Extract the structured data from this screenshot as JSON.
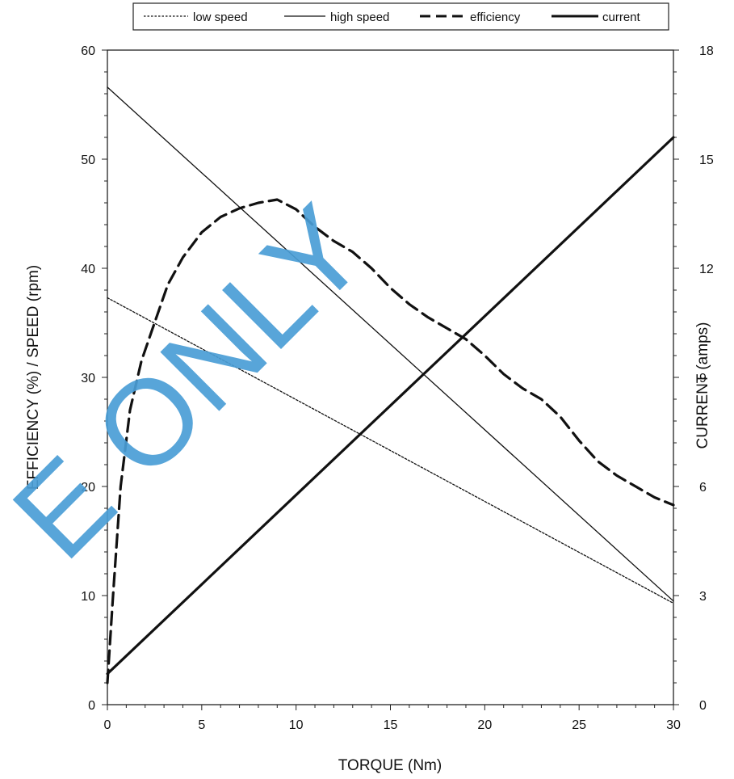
{
  "chart_data": {
    "type": "line",
    "title": "",
    "xlabel": "TORQUE (Nm)",
    "ylabel_left": "EFFICIENCY (%) / SPEED (rpm)",
    "ylabel_right": "CURRENT (amps)",
    "xlim": [
      0,
      30
    ],
    "ylim_left": [
      0,
      60
    ],
    "ylim_right": [
      0,
      18
    ],
    "x_ticks": [
      0,
      5,
      10,
      15,
      20,
      25,
      30
    ],
    "y_ticks_left": [
      0,
      10,
      20,
      30,
      40,
      50,
      60
    ],
    "y_ticks_right": [
      0,
      3,
      6,
      9,
      12,
      15,
      18
    ],
    "grid": false,
    "legend_position": "top-center",
    "series": [
      {
        "name": "low speed",
        "axis": "left",
        "style": "dotted-thin",
        "x": [
          0,
          30
        ],
        "y": [
          37.3,
          9.3
        ]
      },
      {
        "name": "high speed",
        "axis": "left",
        "style": "solid-thin",
        "x": [
          0,
          30
        ],
        "y": [
          56.6,
          9.5
        ]
      },
      {
        "name": "efficiency",
        "axis": "left",
        "style": "dashed-thick",
        "x": [
          0,
          0.3,
          0.7,
          1.2,
          1.8,
          2.5,
          3.2,
          4,
          5,
          6,
          7,
          8,
          9,
          10,
          11,
          12,
          13,
          14,
          15,
          16,
          17,
          18,
          19,
          20,
          21,
          22,
          23,
          24,
          25,
          26,
          27,
          28,
          29,
          30
        ],
        "y": [
          2,
          10,
          20,
          27,
          31.5,
          35,
          38.5,
          41,
          43.3,
          44.7,
          45.5,
          46,
          46.3,
          45.4,
          43.8,
          42.5,
          41.5,
          40,
          38.2,
          36.7,
          35.5,
          34.5,
          33.5,
          32,
          30.3,
          29,
          28,
          26.4,
          24.2,
          22.3,
          21,
          20,
          19,
          18.3
        ]
      },
      {
        "name": "current",
        "axis": "right",
        "style": "solid-thick",
        "x": [
          0,
          30
        ],
        "y": [
          0.85,
          15.6
        ]
      }
    ]
  },
  "legend": [
    {
      "label": "low speed",
      "style": "dotted-thin"
    },
    {
      "label": "high speed",
      "style": "solid-thin"
    },
    {
      "label": "efficiency",
      "style": "dashed-thick"
    },
    {
      "label": "current",
      "style": "solid-thick"
    }
  ],
  "watermark": "E ONLY",
  "colors": {
    "line": "#111111",
    "watermark": "#4a9ed6"
  }
}
